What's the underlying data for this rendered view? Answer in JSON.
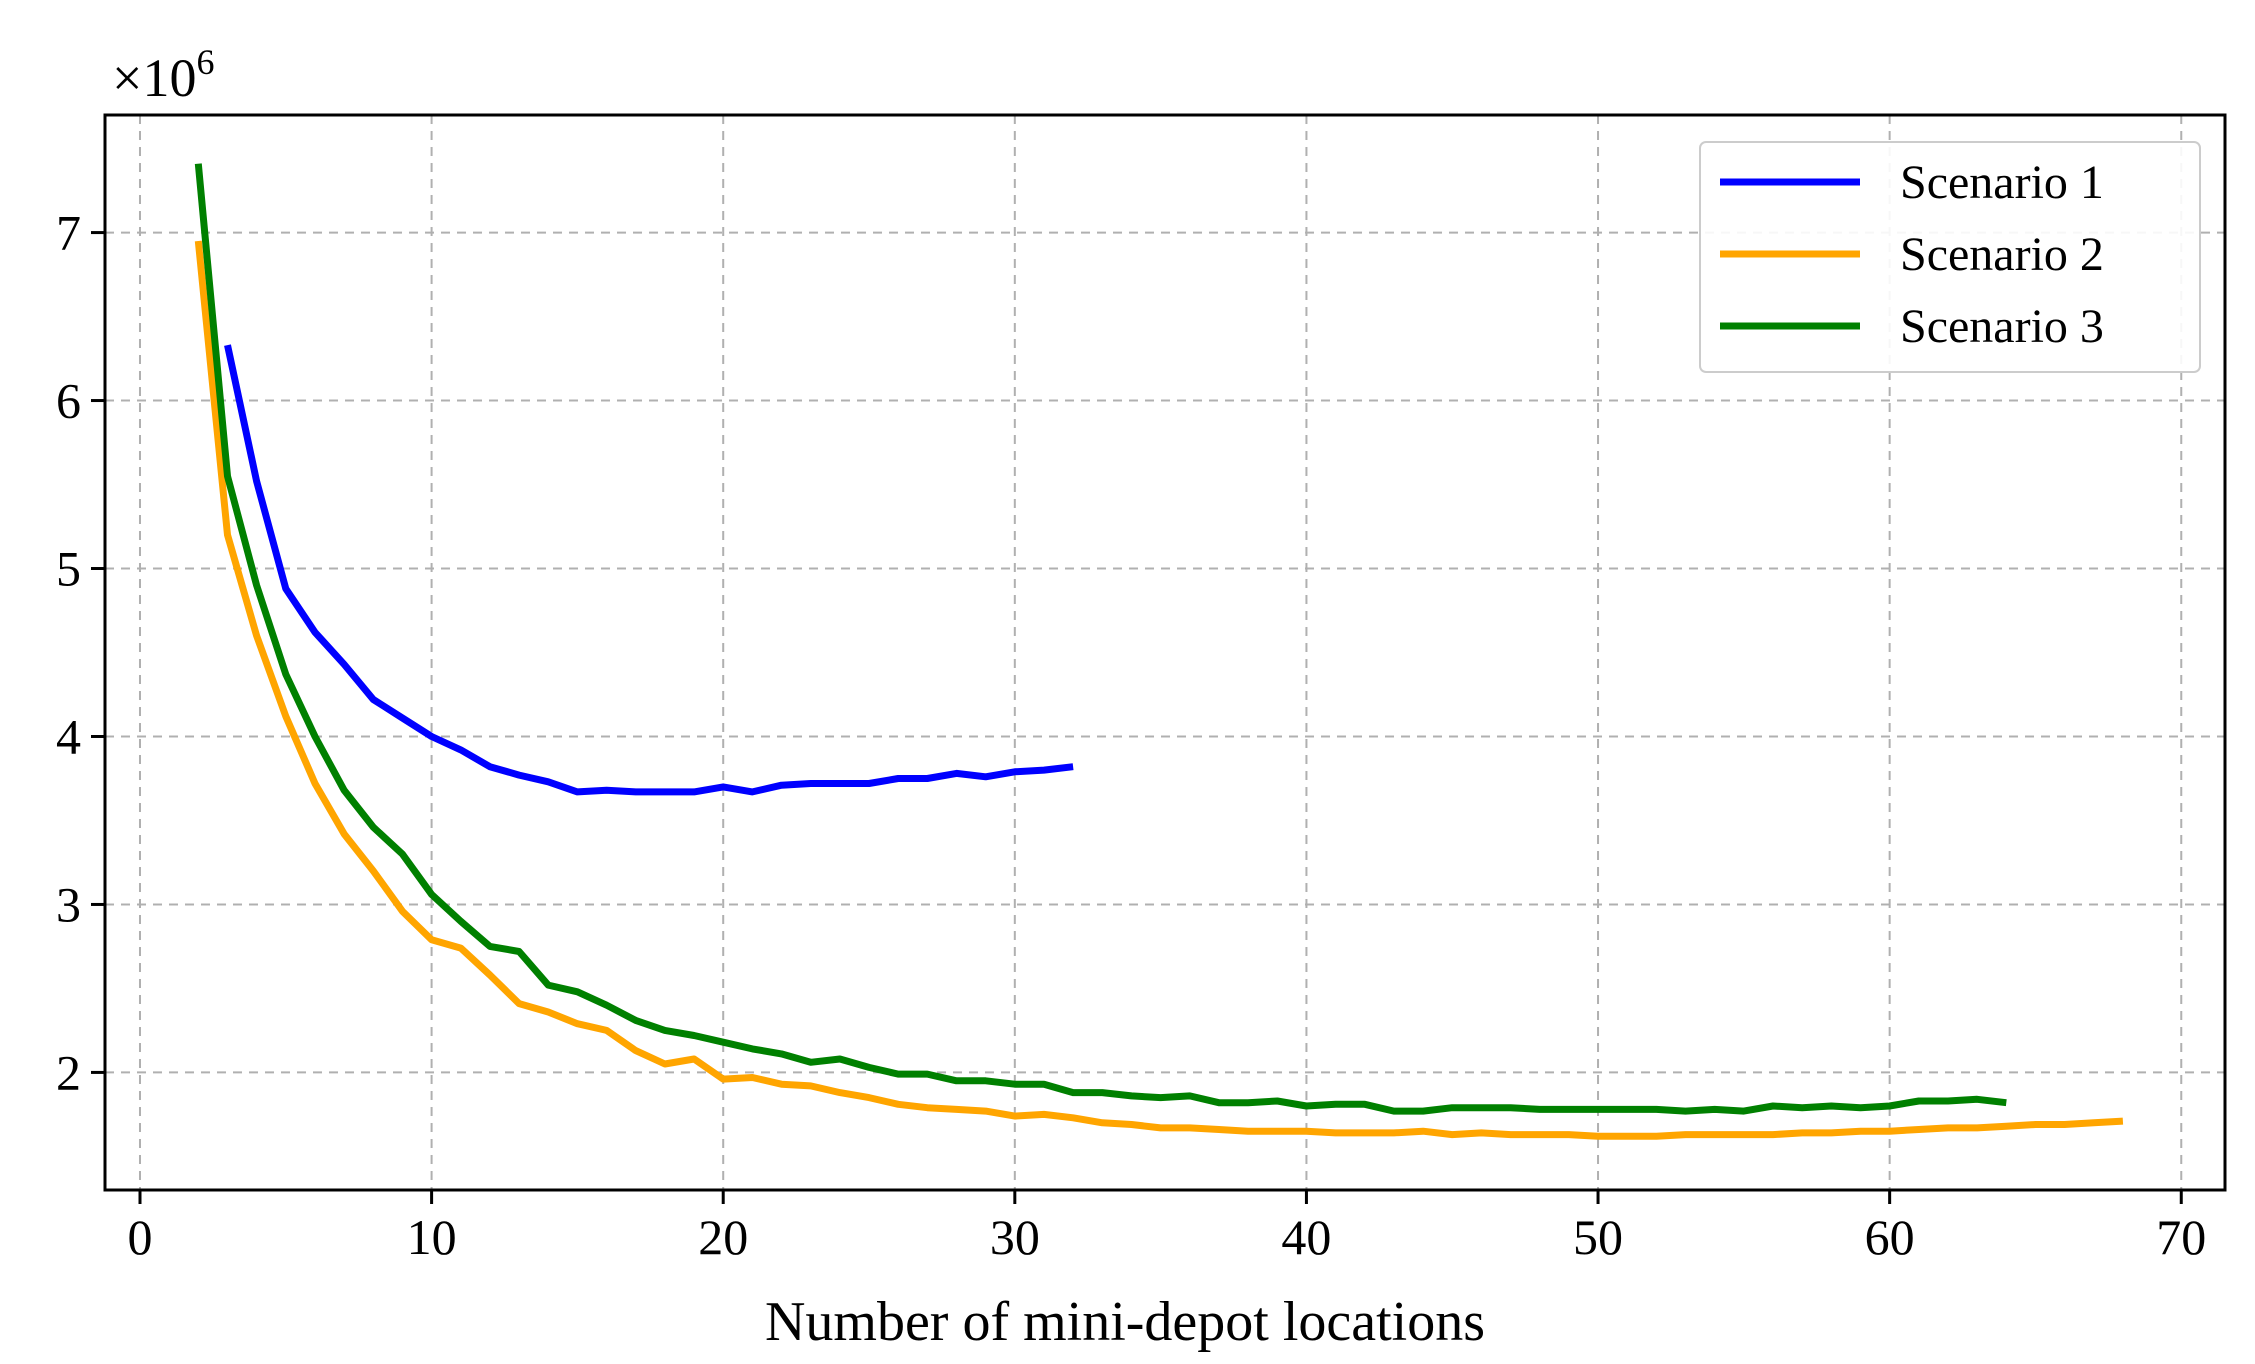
{
  "chart_data": {
    "type": "line",
    "xlabel": "Number of mini-depot locations",
    "ylabel": "",
    "y_multiplier": "×10",
    "y_multiplier_exponent": "6",
    "xlim": [
      -1.2,
      71.5
    ],
    "ylim": [
      1.3,
      7.7
    ],
    "x_ticks": [
      0,
      10,
      20,
      30,
      40,
      50,
      60,
      70
    ],
    "y_ticks": [
      2,
      3,
      4,
      5,
      6,
      7
    ],
    "x_tick_labels": [
      "0",
      "10",
      "20",
      "30",
      "40",
      "50",
      "60",
      "70"
    ],
    "y_tick_labels": [
      "2",
      "3",
      "4",
      "5",
      "6",
      "7"
    ],
    "grid": true,
    "legend_position": "top-right",
    "series": [
      {
        "name": "Scenario 1",
        "color": "#0000ff",
        "x": [
          3,
          4,
          5,
          6,
          7,
          8,
          9,
          10,
          11,
          12,
          13,
          14,
          15,
          16,
          17,
          18,
          19,
          20,
          21,
          22,
          23,
          24,
          25,
          26,
          27,
          28,
          29,
          30,
          31,
          32
        ],
        "y": [
          6.33,
          5.52,
          4.88,
          4.62,
          4.43,
          4.22,
          4.11,
          4.0,
          3.92,
          3.82,
          3.77,
          3.73,
          3.67,
          3.68,
          3.67,
          3.67,
          3.67,
          3.7,
          3.67,
          3.71,
          3.72,
          3.72,
          3.72,
          3.75,
          3.75,
          3.78,
          3.76,
          3.79,
          3.8,
          3.82
        ]
      },
      {
        "name": "Scenario 2",
        "color": "#ffa500",
        "x": [
          2,
          3,
          4,
          5,
          6,
          7,
          8,
          9,
          10,
          11,
          12,
          13,
          14,
          15,
          16,
          17,
          18,
          19,
          20,
          21,
          22,
          23,
          24,
          25,
          26,
          27,
          28,
          29,
          30,
          31,
          32,
          33,
          34,
          35,
          36,
          37,
          38,
          39,
          40,
          41,
          42,
          43,
          44,
          45,
          46,
          47,
          48,
          49,
          50,
          51,
          52,
          53,
          54,
          55,
          56,
          57,
          58,
          59,
          60,
          61,
          62,
          63,
          64,
          65,
          66,
          67,
          68
        ],
        "y": [
          6.95,
          5.2,
          4.6,
          4.12,
          3.72,
          3.42,
          3.2,
          2.96,
          2.79,
          2.74,
          2.58,
          2.41,
          2.36,
          2.29,
          2.25,
          2.13,
          2.05,
          2.08,
          1.96,
          1.97,
          1.93,
          1.92,
          1.88,
          1.85,
          1.81,
          1.79,
          1.78,
          1.77,
          1.74,
          1.75,
          1.73,
          1.7,
          1.69,
          1.67,
          1.67,
          1.66,
          1.65,
          1.65,
          1.65,
          1.64,
          1.64,
          1.64,
          1.65,
          1.63,
          1.64,
          1.63,
          1.63,
          1.63,
          1.62,
          1.62,
          1.62,
          1.63,
          1.63,
          1.63,
          1.63,
          1.64,
          1.64,
          1.65,
          1.65,
          1.66,
          1.67,
          1.67,
          1.68,
          1.69,
          1.69,
          1.7,
          1.71
        ]
      },
      {
        "name": "Scenario 3",
        "color": "#008000",
        "x": [
          2,
          3,
          4,
          5,
          6,
          7,
          8,
          9,
          10,
          11,
          12,
          13,
          14,
          15,
          16,
          17,
          18,
          19,
          20,
          21,
          22,
          23,
          24,
          25,
          26,
          27,
          28,
          29,
          30,
          31,
          32,
          33,
          34,
          35,
          36,
          37,
          38,
          39,
          40,
          41,
          42,
          43,
          44,
          45,
          46,
          47,
          48,
          49,
          50,
          51,
          52,
          53,
          54,
          55,
          56,
          57,
          58,
          59,
          60,
          61,
          62,
          63,
          64
        ],
        "y": [
          7.41,
          5.55,
          4.9,
          4.37,
          4.0,
          3.68,
          3.46,
          3.3,
          3.06,
          2.9,
          2.75,
          2.72,
          2.52,
          2.48,
          2.4,
          2.31,
          2.25,
          2.22,
          2.18,
          2.14,
          2.11,
          2.06,
          2.08,
          2.03,
          1.99,
          1.99,
          1.95,
          1.95,
          1.93,
          1.93,
          1.88,
          1.88,
          1.86,
          1.85,
          1.86,
          1.82,
          1.82,
          1.83,
          1.8,
          1.81,
          1.81,
          1.77,
          1.77,
          1.79,
          1.79,
          1.79,
          1.78,
          1.78,
          1.78,
          1.78,
          1.78,
          1.77,
          1.78,
          1.77,
          1.8,
          1.79,
          1.8,
          1.79,
          1.8,
          1.83,
          1.83,
          1.84,
          1.82
        ]
      }
    ]
  }
}
